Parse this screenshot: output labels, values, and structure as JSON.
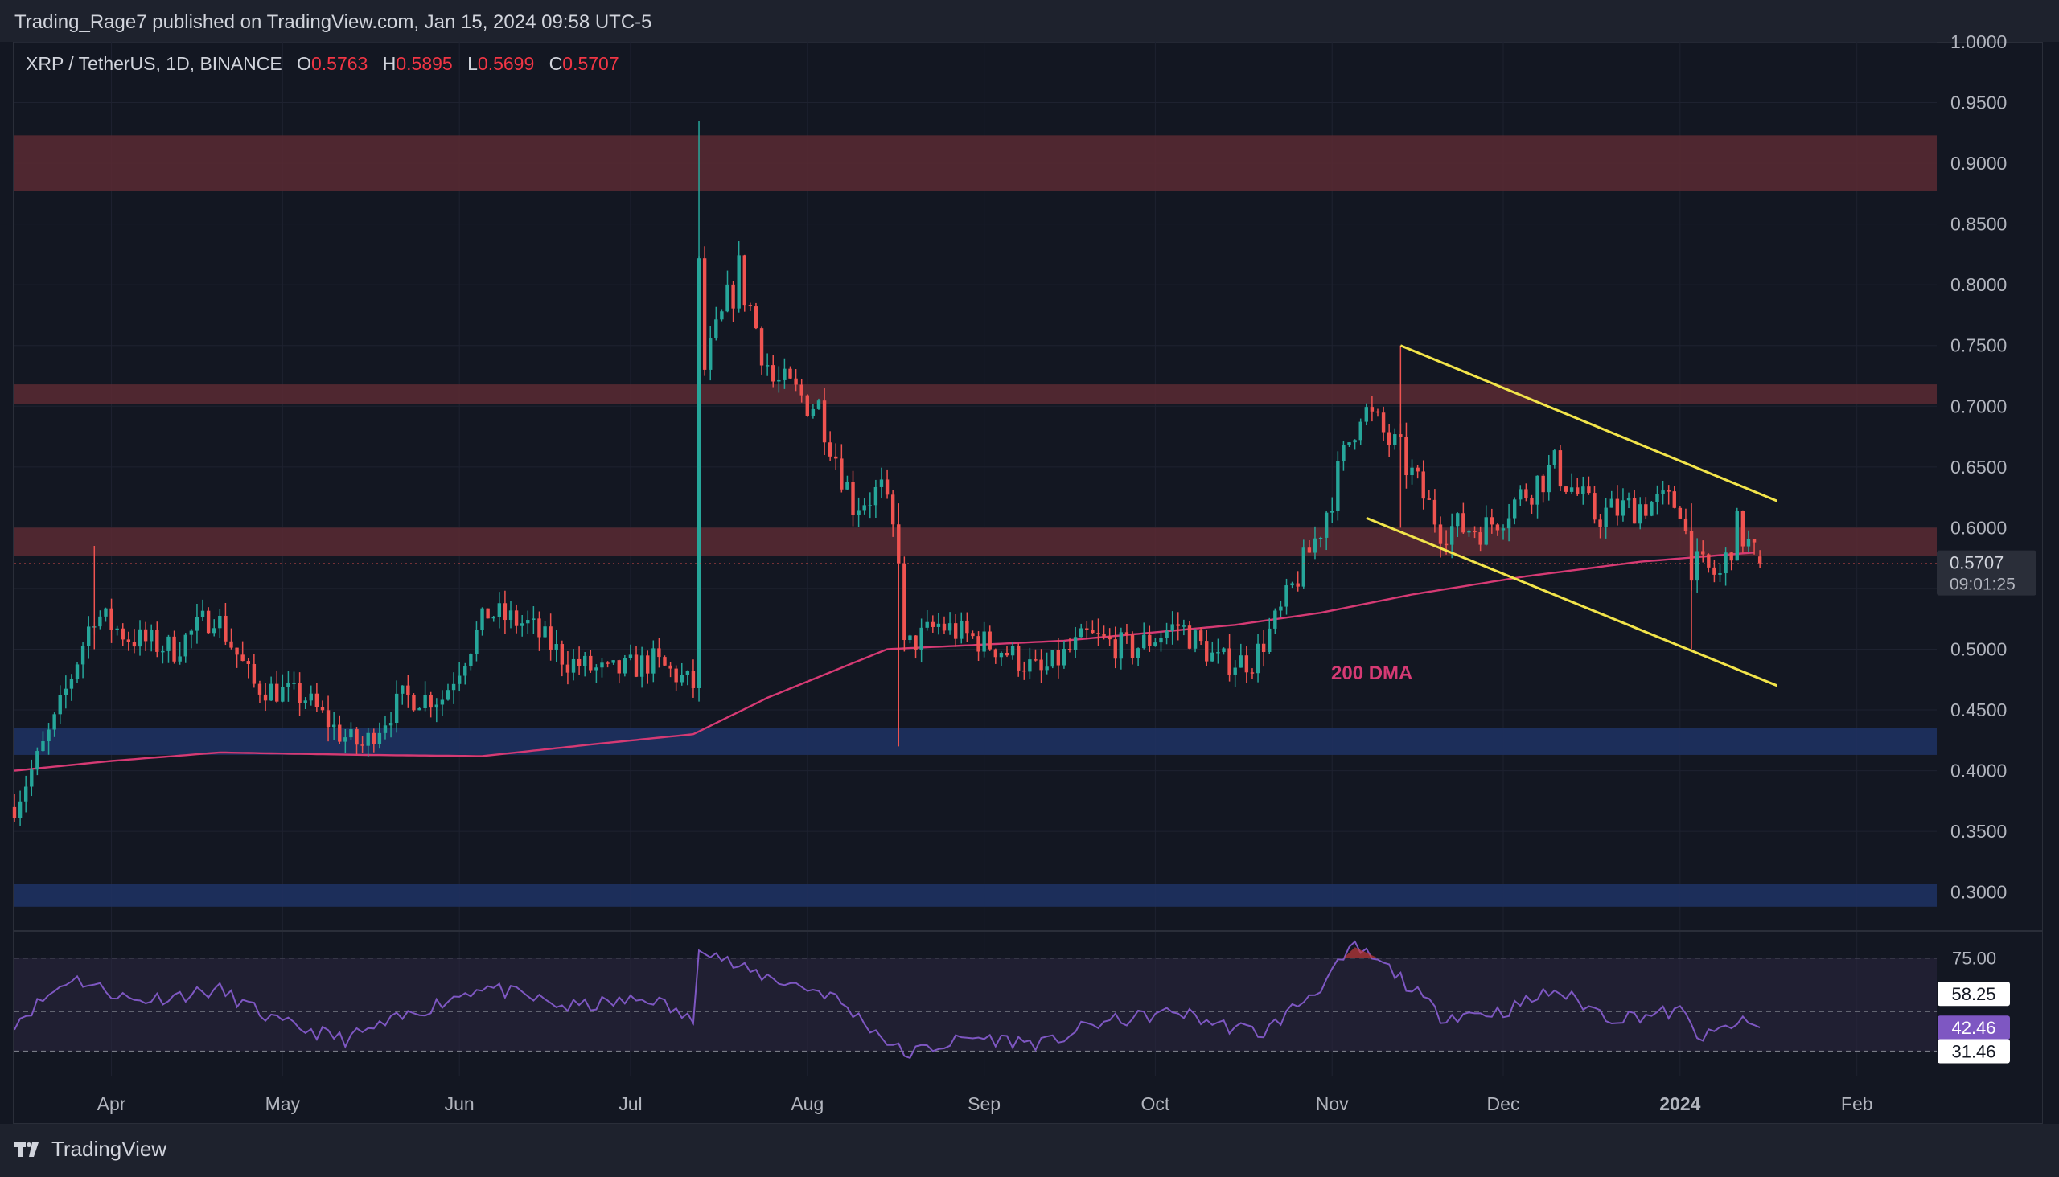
{
  "header": {
    "published": "Trading_Rage7 published on TradingView.com, Jan 15, 2024 09:58 UTC-5"
  },
  "legend": {
    "symbol": "XRP / TetherUS, 1D, BINANCE",
    "o_label": "O",
    "o_value": "0.5763",
    "h_label": "H",
    "h_value": "0.5895",
    "l_label": "L",
    "l_value": "0.5699",
    "c_label": "C",
    "c_value": "0.5707"
  },
  "price_badge": {
    "price": "0.5707",
    "countdown": "09:01:25"
  },
  "annotation": {
    "dma_label": "200 DMA"
  },
  "footer": {
    "brand": "TradingView"
  },
  "colors": {
    "background": "#131722",
    "up": "#26a69a",
    "down": "#ef5350",
    "resistance_zone": "#5a2a33",
    "support_zone": "#1e3161",
    "channel": "#f2e44a",
    "dma": "#d63a74",
    "rsi_line": "#7e57c2",
    "rsi_band": "#2b2740",
    "grid": "#1e2230"
  },
  "chart_data": [
    {
      "type": "candlestick",
      "title": "XRP / TetherUS, 1D, BINANCE",
      "x_axis": {
        "tick_labels": [
          "Apr",
          "May",
          "Jun",
          "Jul",
          "Aug",
          "Sep",
          "Oct",
          "Nov",
          "Dec",
          "2024",
          "Feb"
        ],
        "tick_dates": [
          "2023-04-01",
          "2023-05-01",
          "2023-06-01",
          "2023-07-01",
          "2023-08-01",
          "2023-09-01",
          "2023-10-01",
          "2023-11-01",
          "2023-12-01",
          "2024-01-01",
          "2024-02-01"
        ],
        "range": [
          "2023-03-15",
          "2024-02-15"
        ]
      },
      "y_axis": {
        "range": [
          0.27,
          1.0
        ],
        "tick_labels": [
          "1.0000",
          "0.9500",
          "0.9000",
          "0.8500",
          "0.8000",
          "0.7500",
          "0.7000",
          "0.6500",
          "0.6000",
          "0.5500",
          "0.5000",
          "0.4500",
          "0.4000",
          "0.3500",
          "0.3000"
        ],
        "tick_values": [
          1.0,
          0.95,
          0.9,
          0.85,
          0.8,
          0.75,
          0.7,
          0.65,
          0.6,
          0.55,
          0.5,
          0.45,
          0.4,
          0.35,
          0.3
        ]
      },
      "grid": true,
      "price_path": [
        [
          "2023-03-15",
          0.37
        ],
        [
          "2023-03-22",
          0.44
        ],
        [
          "2023-03-29",
          0.53
        ],
        [
          "2023-04-04",
          0.51
        ],
        [
          "2023-04-12",
          0.5
        ],
        [
          "2023-04-19",
          0.53
        ],
        [
          "2023-04-26",
          0.47
        ],
        [
          "2023-05-05",
          0.46
        ],
        [
          "2023-05-11",
          0.43
        ],
        [
          "2023-05-15",
          0.42
        ],
        [
          "2023-05-22",
          0.46
        ],
        [
          "2023-05-29",
          0.46
        ],
        [
          "2023-06-06",
          0.53
        ],
        [
          "2023-06-13",
          0.52
        ],
        [
          "2023-06-20",
          0.49
        ],
        [
          "2023-06-27",
          0.48
        ],
        [
          "2023-07-05",
          0.49
        ],
        [
          "2023-07-12",
          0.47
        ],
        [
          "2023-07-13",
          0.81
        ],
        [
          "2023-07-14",
          0.73
        ],
        [
          "2023-07-20",
          0.81
        ],
        [
          "2023-07-26",
          0.72
        ],
        [
          "2023-08-03",
          0.7
        ],
        [
          "2023-08-09",
          0.62
        ],
        [
          "2023-08-14",
          0.63
        ],
        [
          "2023-08-17",
          0.58
        ],
        [
          "2023-08-18",
          0.5
        ],
        [
          "2023-08-24",
          0.52
        ],
        [
          "2023-09-04",
          0.5
        ],
        [
          "2023-09-11",
          0.48
        ],
        [
          "2023-09-19",
          0.51
        ],
        [
          "2023-09-27",
          0.5
        ],
        [
          "2023-10-05",
          0.52
        ],
        [
          "2023-10-12",
          0.49
        ],
        [
          "2023-10-18",
          0.49
        ],
        [
          "2023-10-23",
          0.53
        ],
        [
          "2023-10-30",
          0.6
        ],
        [
          "2023-11-06",
          0.7
        ],
        [
          "2023-11-13",
          0.66
        ],
        [
          "2023-11-20",
          0.6
        ],
        [
          "2023-11-28",
          0.6
        ],
        [
          "2023-12-05",
          0.63
        ],
        [
          "2023-12-10",
          0.65
        ],
        [
          "2023-12-17",
          0.61
        ],
        [
          "2023-12-26",
          0.62
        ],
        [
          "2024-01-01",
          0.62
        ],
        [
          "2024-01-03",
          0.57
        ],
        [
          "2024-01-08",
          0.56
        ],
        [
          "2024-01-11",
          0.6
        ],
        [
          "2024-01-15",
          0.571
        ]
      ],
      "horizontal_zones": [
        {
          "kind": "resistance",
          "from": 0.877,
          "to": 0.923
        },
        {
          "kind": "resistance",
          "from": 0.702,
          "to": 0.718
        },
        {
          "kind": "resistance",
          "from": 0.577,
          "to": 0.6
        },
        {
          "kind": "support",
          "from": 0.413,
          "to": 0.435
        },
        {
          "kind": "support",
          "from": 0.288,
          "to": 0.307
        }
      ],
      "channel_lines": [
        {
          "from": [
            "2023-11-13",
            0.75
          ],
          "to": [
            "2024-01-18",
            0.622
          ]
        },
        {
          "from": [
            "2023-11-07",
            0.608
          ],
          "to": [
            "2024-01-18",
            0.47
          ]
        }
      ],
      "moving_average": {
        "name": "200 DMA",
        "points": [
          [
            "2023-03-15",
            0.4
          ],
          [
            "2023-04-01",
            0.408
          ],
          [
            "2023-04-20",
            0.415
          ],
          [
            "2023-05-15",
            0.413
          ],
          [
            "2023-06-05",
            0.412
          ],
          [
            "2023-06-25",
            0.422
          ],
          [
            "2023-07-12",
            0.43
          ],
          [
            "2023-07-25",
            0.46
          ],
          [
            "2023-08-15",
            0.5
          ],
          [
            "2023-09-15",
            0.507
          ],
          [
            "2023-10-15",
            0.52
          ],
          [
            "2023-10-30",
            0.53
          ],
          [
            "2023-11-15",
            0.545
          ],
          [
            "2023-12-05",
            0.56
          ],
          [
            "2023-12-25",
            0.572
          ],
          [
            "2024-01-15",
            0.58
          ]
        ]
      },
      "last_price": 0.5707,
      "ohlc": {
        "open": 0.5763,
        "high": 0.5895,
        "low": 0.5699,
        "close": 0.5707
      }
    },
    {
      "type": "line",
      "title": "RSI",
      "y_axis": {
        "range": [
          20,
          85
        ]
      },
      "levels": [
        75,
        58.25,
        31.46
      ],
      "level_labels": [
        "75.00",
        "58.25",
        "31.46"
      ],
      "current_value": 42.46,
      "current_label": "42.46",
      "points": [
        [
          "2023-03-15",
          45
        ],
        [
          "2023-03-25",
          66
        ],
        [
          "2023-04-05",
          55
        ],
        [
          "2023-04-20",
          60
        ],
        [
          "2023-04-30",
          45
        ],
        [
          "2023-05-12",
          37
        ],
        [
          "2023-05-22",
          47
        ],
        [
          "2023-06-05",
          62
        ],
        [
          "2023-06-20",
          52
        ],
        [
          "2023-07-05",
          56
        ],
        [
          "2023-07-12",
          45
        ],
        [
          "2023-07-13",
          82
        ],
        [
          "2023-07-20",
          70
        ],
        [
          "2023-08-05",
          58
        ],
        [
          "2023-08-18",
          30
        ],
        [
          "2023-08-30",
          38
        ],
        [
          "2023-09-12",
          35
        ],
        [
          "2023-09-20",
          44
        ],
        [
          "2023-10-05",
          50
        ],
        [
          "2023-10-12",
          44
        ],
        [
          "2023-10-20",
          40
        ],
        [
          "2023-10-30",
          62
        ],
        [
          "2023-11-05",
          80
        ],
        [
          "2023-11-12",
          68
        ],
        [
          "2023-11-20",
          48
        ],
        [
          "2023-12-01",
          50
        ],
        [
          "2023-12-10",
          60
        ],
        [
          "2023-12-20",
          47
        ],
        [
          "2024-01-01",
          50
        ],
        [
          "2024-01-05",
          37
        ],
        [
          "2024-01-11",
          45
        ],
        [
          "2024-01-15",
          42.5
        ]
      ]
    }
  ]
}
